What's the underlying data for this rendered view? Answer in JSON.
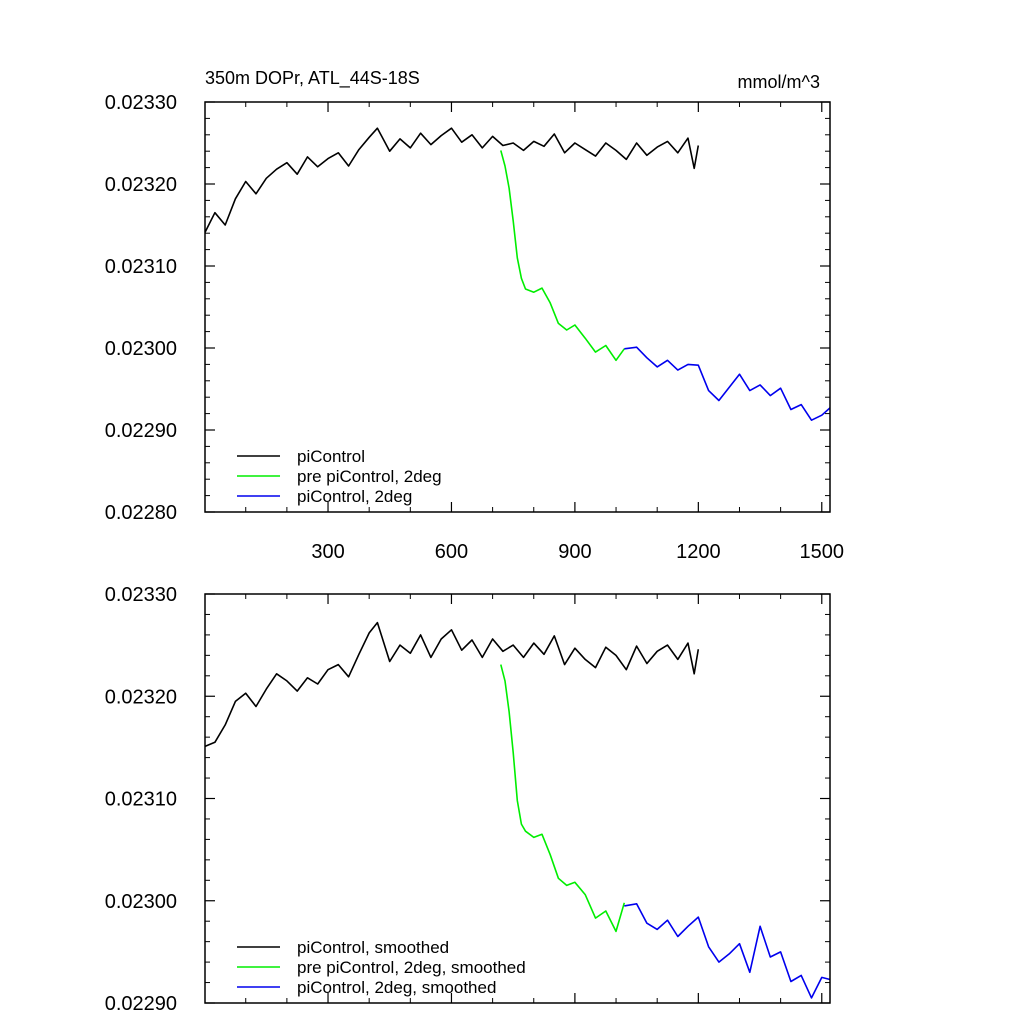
{
  "chart_data": [
    {
      "id": "top",
      "type": "line",
      "title": "350m DOPr, ATL_44S-18S",
      "units": "mmol/m^3",
      "xlabel": "",
      "ylabel": "",
      "xlim": [
        1,
        1520
      ],
      "ylim": [
        0.0228,
        0.0233
      ],
      "xticks": [
        300,
        600,
        900,
        1200,
        1500
      ],
      "xtick_labels": [
        "300",
        "600",
        "900",
        "1200",
        "1500"
      ],
      "yticks": [
        0.0228,
        0.0229,
        0.023,
        0.0231,
        0.0232,
        0.0233
      ],
      "ytick_labels": [
        "0.02280",
        "0.02290",
        "0.02300",
        "0.02310",
        "0.02320",
        "0.02330"
      ],
      "legend_position": "bottom-left",
      "series": [
        {
          "name": "piControl",
          "color": "#000000",
          "x": [
            1,
            25,
            50,
            75,
            100,
            125,
            150,
            175,
            200,
            225,
            250,
            275,
            300,
            325,
            350,
            375,
            400,
            420,
            450,
            475,
            500,
            525,
            550,
            575,
            600,
            625,
            650,
            675,
            700,
            725,
            750,
            775,
            800,
            825,
            850,
            875,
            900,
            925,
            950,
            975,
            1000,
            1025,
            1050,
            1075,
            1100,
            1125,
            1150,
            1175,
            1190,
            1200
          ],
          "values": [
            0.023141,
            0.023165,
            0.02315,
            0.023182,
            0.023203,
            0.023188,
            0.023207,
            0.023218,
            0.023226,
            0.023212,
            0.023233,
            0.023221,
            0.023231,
            0.023238,
            0.023222,
            0.023242,
            0.023257,
            0.023268,
            0.02324,
            0.023255,
            0.023244,
            0.023262,
            0.023248,
            0.023259,
            0.023268,
            0.023251,
            0.02326,
            0.023244,
            0.023258,
            0.023247,
            0.02325,
            0.023241,
            0.023252,
            0.023246,
            0.023261,
            0.023238,
            0.02325,
            0.023242,
            0.023234,
            0.02325,
            0.023241,
            0.02323,
            0.02325,
            0.023235,
            0.023245,
            0.023252,
            0.023238,
            0.023256,
            0.023219,
            0.023247
          ]
        },
        {
          "name": "pre piControl, 2deg",
          "color": "#00ee00",
          "x": [
            720,
            730,
            740,
            750,
            760,
            770,
            780,
            800,
            820,
            840,
            860,
            880,
            900,
            925,
            950,
            975,
            1000,
            1020
          ],
          "values": [
            0.023241,
            0.023222,
            0.023195,
            0.023155,
            0.02311,
            0.023085,
            0.023072,
            0.023068,
            0.023073,
            0.023055,
            0.02303,
            0.023022,
            0.023028,
            0.023012,
            0.022995,
            0.023003,
            0.022985,
            0.022999
          ]
        },
        {
          "name": "piControl, 2deg",
          "color": "#0000ee",
          "x": [
            1020,
            1050,
            1075,
            1100,
            1125,
            1150,
            1175,
            1200,
            1225,
            1250,
            1275,
            1300,
            1325,
            1350,
            1375,
            1400,
            1425,
            1450,
            1475,
            1500,
            1520
          ],
          "values": [
            0.022999,
            0.023001,
            0.022988,
            0.022977,
            0.022985,
            0.022973,
            0.02298,
            0.022979,
            0.022948,
            0.022936,
            0.022952,
            0.022968,
            0.022948,
            0.022955,
            0.022942,
            0.022951,
            0.022925,
            0.022931,
            0.022912,
            0.022918,
            0.022927
          ]
        }
      ]
    },
    {
      "id": "bottom",
      "type": "line",
      "title": "",
      "xlabel": "",
      "ylabel": "",
      "xlim": [
        1,
        1520
      ],
      "ylim": [
        0.0229,
        0.0233
      ],
      "xticks": [
        300,
        600,
        900,
        1200,
        1500
      ],
      "xtick_labels": [],
      "yticks": [
        0.0229,
        0.023,
        0.0231,
        0.0232,
        0.0233
      ],
      "ytick_labels": [
        "0.02290",
        "0.02300",
        "0.02310",
        "0.02320",
        "0.02330"
      ],
      "legend_position": "bottom-left",
      "series": [
        {
          "name": "piControl, smoothed",
          "color": "#000000",
          "x": [
            1,
            25,
            50,
            75,
            100,
            125,
            150,
            175,
            200,
            225,
            250,
            275,
            300,
            325,
            350,
            375,
            400,
            420,
            450,
            475,
            500,
            525,
            550,
            575,
            600,
            625,
            650,
            675,
            700,
            725,
            750,
            775,
            800,
            825,
            850,
            875,
            900,
            925,
            950,
            975,
            1000,
            1025,
            1050,
            1075,
            1100,
            1125,
            1150,
            1175,
            1190,
            1200
          ],
          "values": [
            0.023151,
            0.023155,
            0.023172,
            0.023195,
            0.023203,
            0.02319,
            0.023207,
            0.023222,
            0.023215,
            0.023205,
            0.023218,
            0.023212,
            0.023226,
            0.023231,
            0.023219,
            0.023241,
            0.023262,
            0.023272,
            0.023234,
            0.02325,
            0.023242,
            0.02326,
            0.023238,
            0.023256,
            0.023265,
            0.023245,
            0.023255,
            0.023238,
            0.023256,
            0.023244,
            0.02325,
            0.023238,
            0.023252,
            0.023241,
            0.023259,
            0.023231,
            0.023247,
            0.023236,
            0.023228,
            0.023248,
            0.02324,
            0.023226,
            0.023249,
            0.023232,
            0.023244,
            0.02325,
            0.023236,
            0.023252,
            0.023222,
            0.023246
          ]
        },
        {
          "name": "pre piControl, 2deg, smoothed",
          "color": "#00ee00",
          "x": [
            720,
            730,
            740,
            750,
            760,
            770,
            780,
            800,
            820,
            840,
            860,
            880,
            900,
            925,
            950,
            975,
            1000,
            1020
          ],
          "values": [
            0.023231,
            0.023215,
            0.023185,
            0.023145,
            0.023098,
            0.023075,
            0.023068,
            0.023062,
            0.023065,
            0.023045,
            0.023022,
            0.023015,
            0.023018,
            0.023006,
            0.022983,
            0.02299,
            0.02297,
            0.022998
          ]
        },
        {
          "name": "piControl, 2deg, smoothed",
          "color": "#0000ee",
          "x": [
            1020,
            1050,
            1075,
            1100,
            1125,
            1150,
            1175,
            1200,
            1225,
            1250,
            1275,
            1300,
            1325,
            1350,
            1375,
            1400,
            1425,
            1450,
            1475,
            1500,
            1520
          ],
          "values": [
            0.022995,
            0.022997,
            0.022978,
            0.022972,
            0.022981,
            0.022965,
            0.022975,
            0.022984,
            0.022955,
            0.02294,
            0.022948,
            0.022958,
            0.02293,
            0.022975,
            0.022945,
            0.02295,
            0.022921,
            0.022927,
            0.022905,
            0.022925,
            0.022923
          ]
        }
      ]
    }
  ]
}
